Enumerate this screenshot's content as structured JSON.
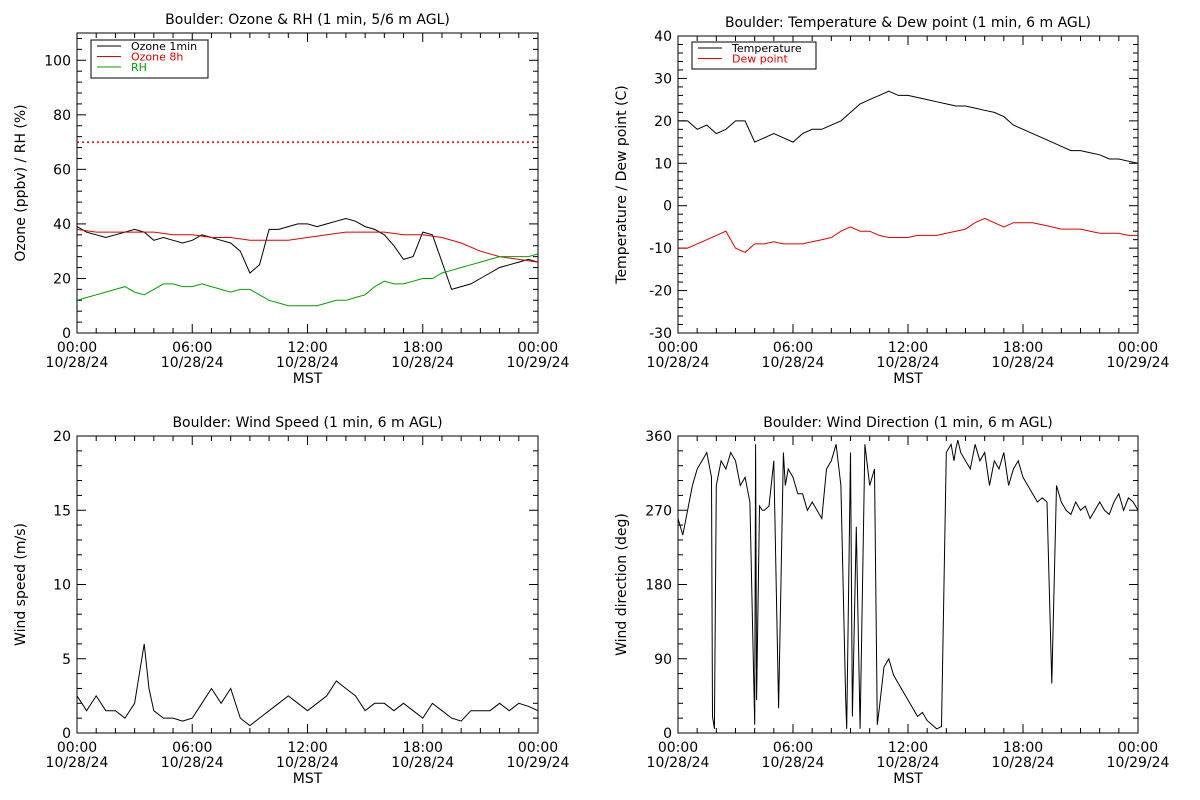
{
  "colors": {
    "ozone_1min": "#000000",
    "ozone_8h": "#e00000",
    "rh": "#00a000",
    "temperature": "#000000",
    "dew_point": "#e00000",
    "wind": "#000000",
    "reference_line": "#e00000"
  },
  "chart_data": [
    {
      "id": "ozone",
      "type": "line",
      "title": "Boulder: Ozone & RH (1 min, 5/6 m AGL)",
      "xlabel": "MST",
      "ylabel": "Ozone (ppbv) / RH (%)",
      "x_ticks": [
        {
          "top": "00:00",
          "bottom": "10/28/24"
        },
        {
          "top": "06:00",
          "bottom": "10/28/24"
        },
        {
          "top": "12:00",
          "bottom": "10/28/24"
        },
        {
          "top": "18:00",
          "bottom": "10/28/24"
        },
        {
          "top": "00:00",
          "bottom": "10/29/24"
        }
      ],
      "xlim": [
        0,
        24
      ],
      "ylim": [
        0,
        110
      ],
      "y_ticks": [
        0,
        20,
        40,
        60,
        80,
        100
      ],
      "legend": [
        "Ozone 1min",
        "Ozone 8h",
        "RH"
      ],
      "legend_position": "top-left",
      "reference_line": {
        "y": 70,
        "style": "dotted"
      },
      "series": [
        {
          "name": "Ozone 1min",
          "x": [
            0,
            0.5,
            1,
            1.5,
            2,
            2.5,
            3,
            3.5,
            4,
            4.5,
            5,
            5.5,
            6,
            6.5,
            7,
            7.5,
            8,
            8.5,
            9,
            9.5,
            10,
            10.5,
            11,
            11.5,
            12,
            12.5,
            13,
            13.5,
            14,
            14.5,
            15,
            15.5,
            16,
            16.5,
            17,
            17.5,
            18,
            18.5,
            19,
            19.5,
            20,
            20.5,
            21,
            21.5,
            22,
            22.5,
            23,
            23.5,
            24
          ],
          "y": [
            39,
            37,
            36,
            35,
            36,
            37,
            38,
            37,
            34,
            35,
            34,
            33,
            34,
            36,
            35,
            34,
            33,
            30,
            22,
            25,
            38,
            38,
            39,
            40,
            40,
            39,
            40,
            41,
            42,
            41,
            39,
            38,
            36,
            32,
            27,
            28,
            37,
            36,
            26,
            16,
            17,
            18,
            20,
            22,
            24,
            25,
            26,
            27,
            26
          ]
        },
        {
          "name": "Ozone 8h",
          "x": [
            0,
            1,
            2,
            3,
            4,
            5,
            6,
            7,
            8,
            9,
            10,
            11,
            12,
            13,
            14,
            15,
            16,
            17,
            18,
            19,
            20,
            21,
            22,
            23,
            24
          ],
          "y": [
            38,
            37,
            37,
            37,
            37,
            36,
            36,
            35,
            35,
            34,
            34,
            34,
            35,
            36,
            37,
            37,
            37,
            36,
            36,
            35,
            33,
            30,
            28,
            27,
            26
          ]
        },
        {
          "name": "RH",
          "x": [
            0,
            0.5,
            1,
            1.5,
            2,
            2.5,
            3,
            3.5,
            4,
            4.5,
            5,
            5.5,
            6,
            6.5,
            7,
            7.5,
            8,
            8.5,
            9,
            9.5,
            10,
            10.5,
            11,
            11.5,
            12,
            12.5,
            13,
            13.5,
            14,
            14.5,
            15,
            15.5,
            16,
            16.5,
            17,
            17.5,
            18,
            18.5,
            19,
            19.5,
            20,
            20.5,
            21,
            21.5,
            22,
            22.5,
            23,
            23.5,
            24
          ],
          "y": [
            12,
            13,
            14,
            15,
            16,
            17,
            15,
            14,
            16,
            18,
            18,
            17,
            17,
            18,
            17,
            16,
            15,
            16,
            16,
            14,
            12,
            11,
            10,
            10,
            10,
            10,
            11,
            12,
            12,
            13,
            14,
            17,
            19,
            18,
            18,
            19,
            20,
            20,
            22,
            23,
            24,
            25,
            26,
            27,
            28,
            28,
            28,
            28,
            29
          ]
        }
      ]
    },
    {
      "id": "temperature",
      "type": "line",
      "title": "Boulder: Temperature & Dew point (1 min, 6 m AGL)",
      "xlabel": "MST",
      "ylabel": "Temperature / Dew point (C)",
      "x_ticks": [
        {
          "top": "00:00",
          "bottom": "10/28/24"
        },
        {
          "top": "06:00",
          "bottom": "10/28/24"
        },
        {
          "top": "12:00",
          "bottom": "10/28/24"
        },
        {
          "top": "18:00",
          "bottom": "10/28/24"
        },
        {
          "top": "00:00",
          "bottom": "10/29/24"
        }
      ],
      "xlim": [
        0,
        24
      ],
      "ylim": [
        -30,
        40
      ],
      "y_ticks": [
        -30,
        -20,
        -10,
        0,
        10,
        20,
        30,
        40
      ],
      "legend": [
        "Temperature",
        "Dew point"
      ],
      "legend_position": "top-left",
      "series": [
        {
          "name": "Temperature",
          "x": [
            0,
            0.5,
            1,
            1.5,
            2,
            2.5,
            3,
            3.5,
            4,
            4.5,
            5,
            5.5,
            6,
            6.5,
            7,
            7.5,
            8,
            8.5,
            9,
            9.5,
            10,
            10.5,
            11,
            11.5,
            12,
            12.5,
            13,
            13.5,
            14,
            14.5,
            15,
            15.5,
            16,
            16.5,
            17,
            17.5,
            18,
            18.5,
            19,
            19.5,
            20,
            20.5,
            21,
            21.5,
            22,
            22.5,
            23,
            23.5,
            24
          ],
          "y": [
            20,
            20,
            18,
            19,
            17,
            18,
            20,
            20,
            15,
            16,
            17,
            16,
            15,
            17,
            18,
            18,
            19,
            20,
            22,
            24,
            25,
            26,
            27,
            26,
            26,
            25.5,
            25,
            24.5,
            24,
            23.5,
            23.5,
            23,
            22.5,
            22,
            21,
            19,
            18,
            17,
            16,
            15,
            14,
            13,
            13,
            12.5,
            12,
            11,
            11,
            10.5,
            10
          ]
        },
        {
          "name": "Dew point",
          "x": [
            0,
            0.5,
            1,
            1.5,
            2,
            2.5,
            3,
            3.5,
            4,
            4.5,
            5,
            5.5,
            6,
            6.5,
            7,
            7.5,
            8,
            8.5,
            9,
            9.5,
            10,
            10.5,
            11,
            11.5,
            12,
            12.5,
            13,
            13.5,
            14,
            14.5,
            15,
            15.5,
            16,
            16.5,
            17,
            17.5,
            18,
            18.5,
            19,
            19.5,
            20,
            20.5,
            21,
            21.5,
            22,
            22.5,
            23,
            23.5,
            24
          ],
          "y": [
            -10,
            -10,
            -9,
            -8,
            -7,
            -6,
            -10,
            -11,
            -9,
            -9,
            -8.5,
            -9,
            -9,
            -9,
            -8.5,
            -8,
            -7.5,
            -6,
            -5,
            -6,
            -6,
            -7,
            -7.5,
            -7.5,
            -7.5,
            -7,
            -7,
            -7,
            -6.5,
            -6,
            -5.5,
            -4,
            -3,
            -4,
            -5,
            -4,
            -4,
            -4,
            -4.5,
            -5,
            -5.5,
            -5.5,
            -5.5,
            -6,
            -6.5,
            -6.5,
            -6.5,
            -7,
            -7
          ]
        }
      ]
    },
    {
      "id": "wind_speed",
      "type": "line",
      "title": "Boulder: Wind Speed (1 min, 6 m AGL)",
      "xlabel": "MST",
      "ylabel": "Wind speed (m/s)",
      "x_ticks": [
        {
          "top": "00:00",
          "bottom": "10/28/24"
        },
        {
          "top": "06:00",
          "bottom": "10/28/24"
        },
        {
          "top": "12:00",
          "bottom": "10/28/24"
        },
        {
          "top": "18:00",
          "bottom": "10/28/24"
        },
        {
          "top": "00:00",
          "bottom": "10/29/24"
        }
      ],
      "xlim": [
        0,
        24
      ],
      "ylim": [
        0,
        20
      ],
      "y_ticks": [
        0,
        5,
        10,
        15,
        20
      ],
      "series": [
        {
          "name": "Wind speed",
          "x": [
            0,
            0.5,
            1,
            1.5,
            2,
            2.5,
            3,
            3.25,
            3.5,
            3.75,
            4,
            4.5,
            5,
            5.5,
            6,
            6.5,
            7,
            7.5,
            8,
            8.5,
            9,
            9.5,
            10,
            10.5,
            11,
            11.5,
            12,
            12.5,
            13,
            13.5,
            14,
            14.5,
            15,
            15.5,
            16,
            16.5,
            17,
            17.5,
            18,
            18.5,
            19,
            19.5,
            20,
            20.5,
            21,
            21.5,
            22,
            22.5,
            23,
            23.5,
            24
          ],
          "y": [
            2.5,
            1.5,
            2.5,
            1.5,
            1.5,
            1,
            2,
            4,
            6,
            3,
            1.5,
            1,
            1,
            0.8,
            1,
            2,
            3,
            2,
            3,
            1,
            0.5,
            1,
            1.5,
            2,
            2.5,
            2,
            1.5,
            2,
            2.5,
            3.5,
            3,
            2.5,
            1.5,
            2,
            2,
            1.5,
            2,
            1.5,
            1,
            2,
            1.5,
            1,
            0.8,
            1.5,
            1.5,
            1.5,
            2,
            1.5,
            2,
            1.8,
            1.5
          ]
        }
      ]
    },
    {
      "id": "wind_direction",
      "type": "line",
      "title": "Boulder: Wind Direction (1 min, 6 m AGL)",
      "xlabel": "MST",
      "ylabel": "Wind direction (deg)",
      "x_ticks": [
        {
          "top": "00:00",
          "bottom": "10/28/24"
        },
        {
          "top": "06:00",
          "bottom": "10/28/24"
        },
        {
          "top": "12:00",
          "bottom": "10/28/24"
        },
        {
          "top": "18:00",
          "bottom": "10/28/24"
        },
        {
          "top": "00:00",
          "bottom": "10/29/24"
        }
      ],
      "xlim": [
        0,
        24
      ],
      "ylim": [
        0,
        360
      ],
      "y_ticks": [
        0,
        90,
        180,
        270,
        360
      ],
      "series": [
        {
          "name": "Wind direction",
          "x": [
            0,
            0.25,
            0.5,
            0.75,
            1,
            1.25,
            1.5,
            1.75,
            1.8,
            1.9,
            2,
            2.25,
            2.5,
            2.75,
            3,
            3.25,
            3.5,
            3.75,
            4,
            4.05,
            4.1,
            4.25,
            4.4,
            4.5,
            4.75,
            5,
            5.25,
            5.5,
            5.6,
            5.75,
            6,
            6.25,
            6.5,
            6.75,
            7,
            7.25,
            7.5,
            7.75,
            8,
            8.25,
            8.5,
            8.75,
            8.8,
            9,
            9.1,
            9.3,
            9.5,
            9.75,
            10,
            10.25,
            10.4,
            10.5,
            10.75,
            11,
            11.25,
            11.5,
            11.75,
            12,
            12.25,
            12.5,
            12.75,
            13,
            13.25,
            13.5,
            13.75,
            14,
            14.25,
            14.4,
            14.5,
            14.6,
            14.75,
            15,
            15.25,
            15.5,
            15.75,
            16,
            16.25,
            16.5,
            16.75,
            17,
            17.25,
            17.5,
            17.75,
            18,
            18.25,
            18.5,
            18.75,
            19,
            19.25,
            19.5,
            19.75,
            20,
            20.25,
            20.5,
            20.75,
            21,
            21.25,
            21.5,
            21.75,
            22,
            22.25,
            22.5,
            22.75,
            23,
            23.25,
            23.5,
            23.75,
            24
          ],
          "y": [
            260,
            240,
            270,
            300,
            320,
            330,
            340,
            310,
            20,
            5,
            300,
            330,
            320,
            340,
            330,
            300,
            310,
            280,
            10,
            350,
            40,
            275,
            270,
            270,
            275,
            330,
            30,
            340,
            300,
            320,
            310,
            290,
            290,
            270,
            280,
            270,
            260,
            320,
            330,
            350,
            300,
            40,
            5,
            340,
            20,
            250,
            5,
            350,
            300,
            320,
            10,
            30,
            80,
            90,
            70,
            60,
            50,
            40,
            30,
            20,
            25,
            15,
            10,
            5,
            8,
            340,
            350,
            330,
            345,
            355,
            340,
            330,
            320,
            350,
            330,
            340,
            300,
            330,
            320,
            340,
            300,
            320,
            330,
            310,
            300,
            290,
            280,
            285,
            280,
            60,
            300,
            280,
            270,
            265,
            280,
            270,
            275,
            260,
            270,
            280,
            270,
            265,
            280,
            290,
            270,
            285,
            280,
            270
          ]
        }
      ]
    }
  ]
}
